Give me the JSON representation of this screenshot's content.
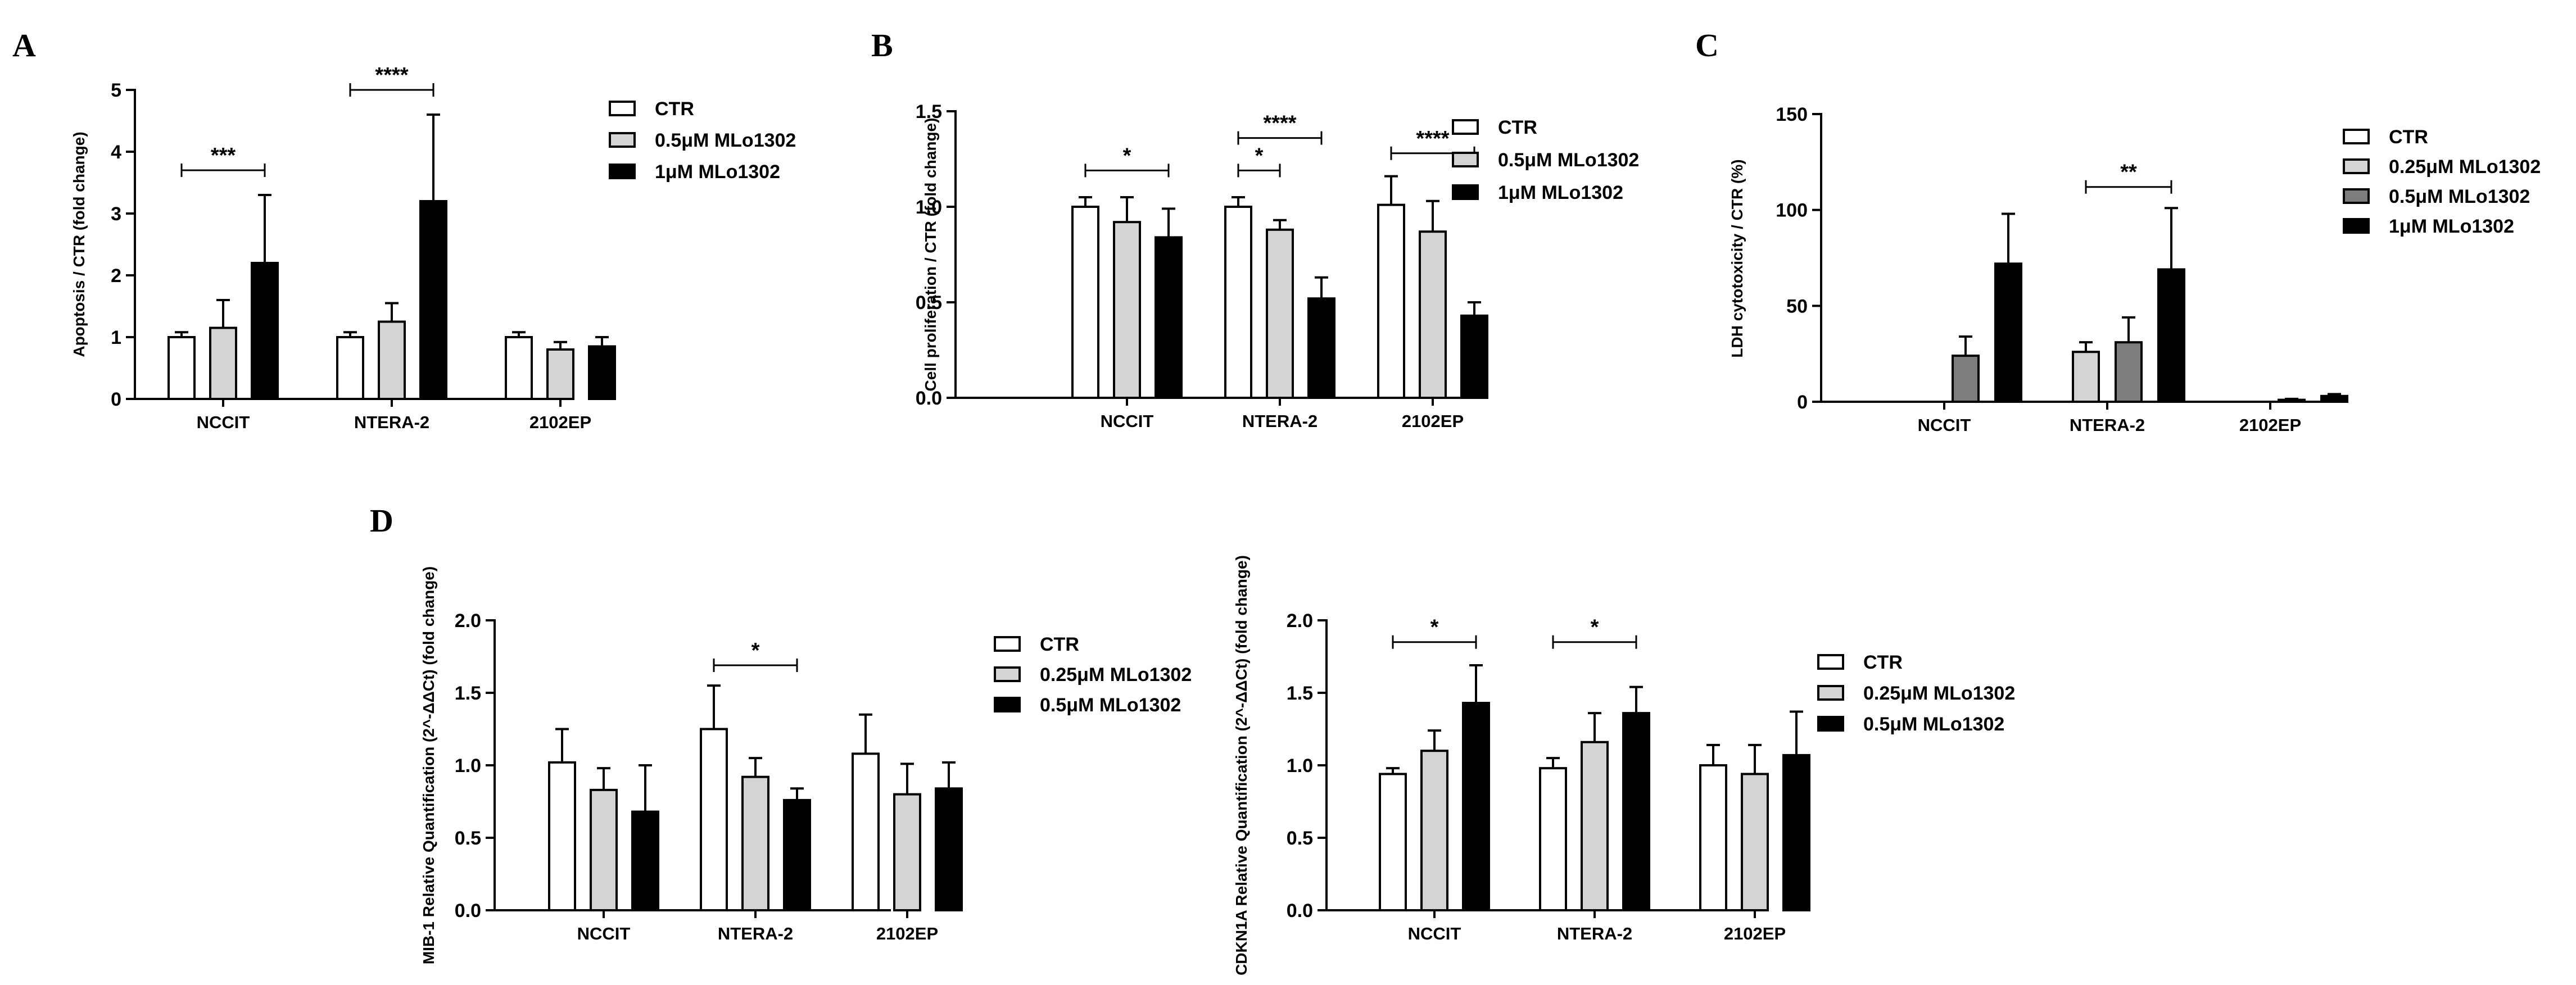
{
  "figure": {
    "panel_letters": [
      "A",
      "B",
      "C",
      "D"
    ]
  },
  "colors": {
    "CTR": "#ffffff",
    "light_gray": "#d4d4d4",
    "dark_gray": "#7d7d7d",
    "black": "#000000"
  },
  "chart_data": [
    {
      "id": "A",
      "type": "bar",
      "ylabel": "Apoptosis / CTR (fold change)",
      "categories": [
        "NCCIT",
        "NTERA-2",
        "2102EP"
      ],
      "ylim": [
        0,
        5
      ],
      "yticks": [
        "0",
        "1",
        "2",
        "3",
        "4",
        "5"
      ],
      "series": [
        {
          "name": "CTR",
          "color": "CTR",
          "values": [
            1.0,
            1.0,
            1.0
          ],
          "errors": [
            0.08,
            0.08,
            0.08
          ]
        },
        {
          "name": "0.5μM MLo1302",
          "color": "light_gray",
          "values": [
            1.15,
            1.25,
            0.8
          ],
          "errors": [
            0.45,
            0.3,
            0.12
          ]
        },
        {
          "name": "1μM  MLo1302",
          "color": "black",
          "values": [
            2.2,
            3.2,
            0.85
          ],
          "errors": [
            1.1,
            1.4,
            0.15
          ]
        }
      ],
      "significance": [
        {
          "category": 0,
          "from": 0,
          "to": 2,
          "y": 3.7,
          "label": "***"
        },
        {
          "category": 1,
          "from": 0,
          "to": 2,
          "y": 5.0,
          "label": "****"
        }
      ]
    },
    {
      "id": "B",
      "type": "bar",
      "ylabel": "Cell proliferation / CTR (fold change)",
      "categories": [
        "NCCIT",
        "NTERA-2",
        "2102EP"
      ],
      "ylim": [
        0,
        1.5
      ],
      "yticks": [
        "0.0",
        "0.5",
        "1.0",
        "1.5"
      ],
      "series": [
        {
          "name": "CTR",
          "color": "CTR",
          "values": [
            1.0,
            1.0,
            1.01
          ],
          "errors": [
            0.05,
            0.05,
            0.15
          ]
        },
        {
          "name": "0.5μM MLo1302",
          "color": "light_gray",
          "values": [
            0.92,
            0.88,
            0.87
          ],
          "errors": [
            0.13,
            0.05,
            0.16
          ]
        },
        {
          "name": "1μM MLo1302",
          "color": "black",
          "values": [
            0.84,
            0.52,
            0.43
          ],
          "errors": [
            0.15,
            0.11,
            0.07
          ]
        }
      ],
      "significance": [
        {
          "category": 0,
          "from": 0,
          "to": 2,
          "y": 1.19,
          "label": "*"
        },
        {
          "category": 1,
          "from": 0,
          "to": 1,
          "y": 1.19,
          "label": "*"
        },
        {
          "category": 1,
          "from": 0,
          "to": 2,
          "y": 1.36,
          "label": "****"
        },
        {
          "category": 2,
          "from": 0,
          "to": 2,
          "y": 1.28,
          "label": "****"
        }
      ]
    },
    {
      "id": "C",
      "type": "bar",
      "ylabel": "LDH cytotoxicity / CTR (%)",
      "categories": [
        "NCCIT",
        "NTERA-2",
        "2102EP"
      ],
      "ylim": [
        0,
        150
      ],
      "yticks": [
        "0",
        "50",
        "100",
        "150"
      ],
      "series": [
        {
          "name": "CTR",
          "color": "CTR",
          "values": [
            0,
            0,
            0
          ],
          "errors": [
            0,
            0,
            0
          ]
        },
        {
          "name": "0.25μM MLo1302",
          "color": "light_gray",
          "values": [
            0,
            26,
            0
          ],
          "errors": [
            0,
            5,
            0
          ]
        },
        {
          "name": "0.5μM MLo1302",
          "color": "dark_gray",
          "values": [
            24,
            31,
            1
          ],
          "errors": [
            10,
            13,
            0.5
          ]
        },
        {
          "name": "1μM MLo1302",
          "color": "black",
          "values": [
            72,
            69,
            3
          ],
          "errors": [
            26,
            32,
            1
          ]
        }
      ],
      "significance": [
        {
          "category": 1,
          "from": 1,
          "to": 3,
          "y": 112,
          "label": "**"
        }
      ]
    },
    {
      "id": "D1",
      "type": "bar",
      "ylabel": "MIB-1 Relative Quantification (2^-ΔΔCt) (fold change)",
      "categories": [
        "NCCIT",
        "NTERA-2",
        "2102EP"
      ],
      "ylim": [
        0,
        2.0
      ],
      "yticks": [
        "0.0",
        "0.5",
        "1.0",
        "1.5",
        "2.0"
      ],
      "series": [
        {
          "name": "CTR",
          "color": "CTR",
          "values": [
            1.02,
            1.25,
            1.08
          ],
          "errors": [
            0.23,
            0.3,
            0.27
          ]
        },
        {
          "name": "0.25μM MLo1302",
          "color": "light_gray",
          "values": [
            0.83,
            0.92,
            0.8
          ],
          "errors": [
            0.15,
            0.13,
            0.21
          ]
        },
        {
          "name": "0.5μM MLo1302",
          "color": "black",
          "values": [
            0.68,
            0.76,
            0.84
          ],
          "errors": [
            0.32,
            0.08,
            0.18
          ]
        }
      ],
      "significance": [
        {
          "category": 1,
          "from": 0,
          "to": 2,
          "y": 1.69,
          "label": "*"
        }
      ]
    },
    {
      "id": "D2",
      "type": "bar",
      "ylabel": "CDKN1A Relative Quantification (2^-ΔΔCt) (fold change)",
      "categories": [
        "NCCIT",
        "NTERA-2",
        "2102EP"
      ],
      "ylim": [
        0,
        2.0
      ],
      "yticks": [
        "0.0",
        "0.5",
        "1.0",
        "1.5",
        "2.0"
      ],
      "series": [
        {
          "name": "CTR",
          "color": "CTR",
          "values": [
            0.94,
            0.98,
            1.0
          ],
          "errors": [
            0.04,
            0.07,
            0.14
          ]
        },
        {
          "name": "0.25μM MLo1302",
          "color": "light_gray",
          "values": [
            1.1,
            1.16,
            0.94
          ],
          "errors": [
            0.14,
            0.2,
            0.2
          ]
        },
        {
          "name": "0.5μM MLo1302",
          "color": "black",
          "values": [
            1.43,
            1.36,
            1.07
          ],
          "errors": [
            0.26,
            0.18,
            0.3
          ]
        }
      ],
      "significance": [
        {
          "category": 0,
          "from": 0,
          "to": 2,
          "y": 1.85,
          "label": "*"
        },
        {
          "category": 1,
          "from": 0,
          "to": 2,
          "y": 1.85,
          "label": "*"
        }
      ]
    }
  ]
}
